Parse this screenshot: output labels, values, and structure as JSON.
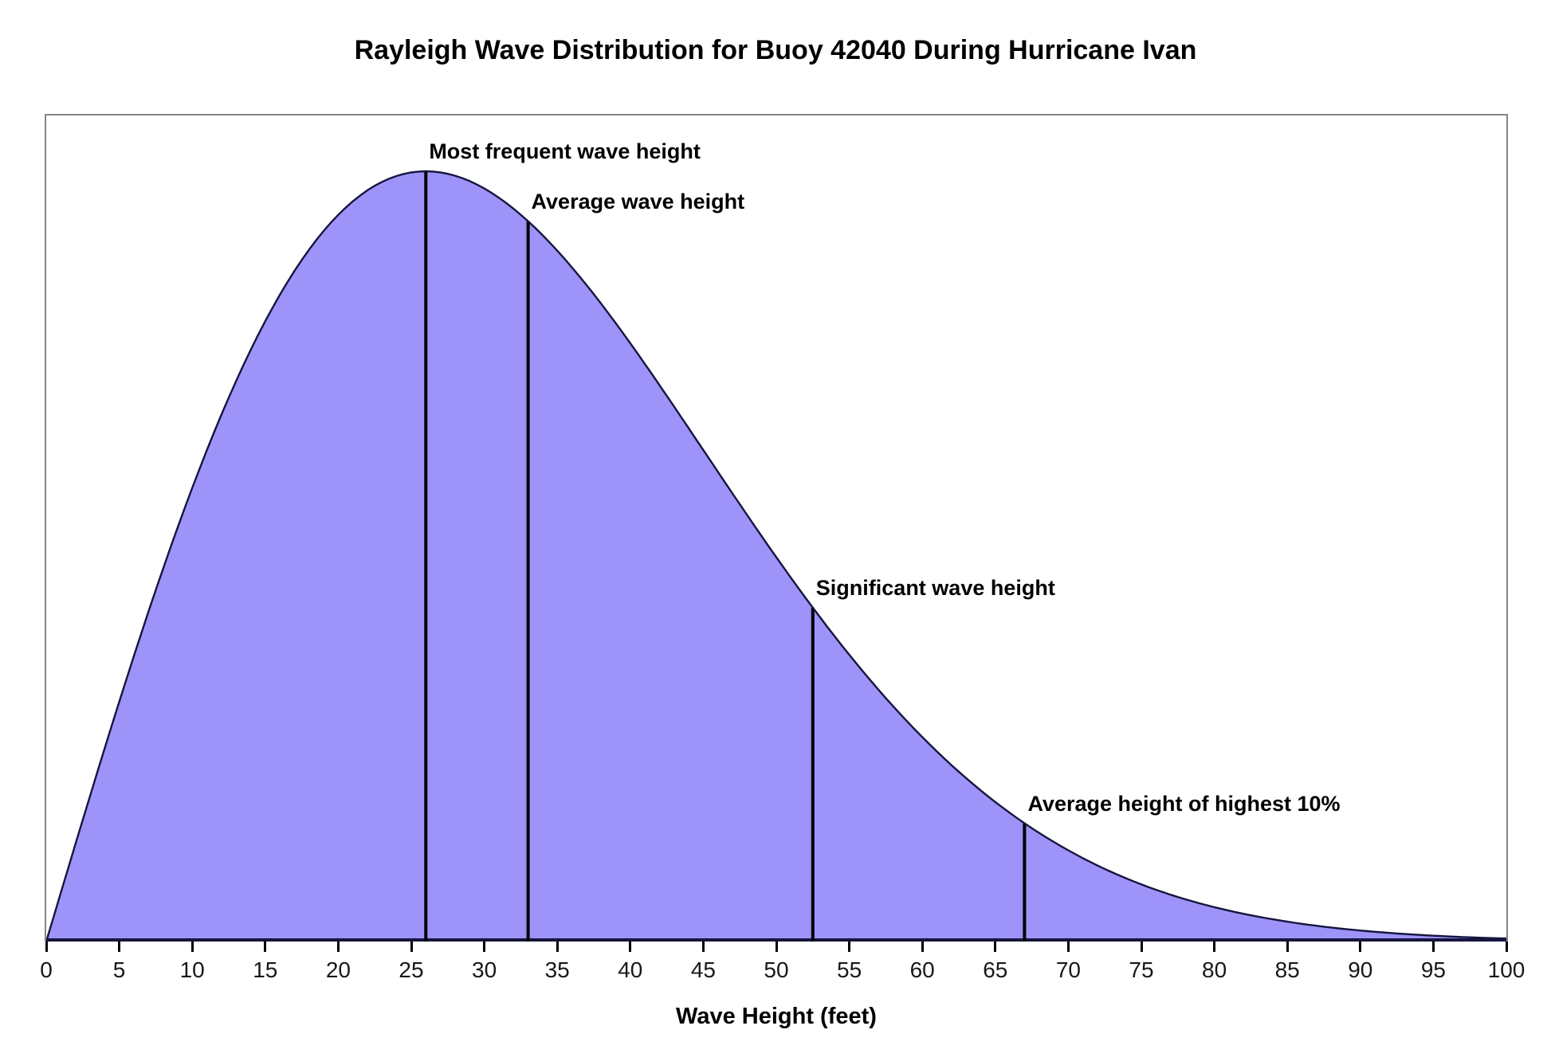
{
  "title": "Rayleigh Wave Distribution for Buoy 42040 During Hurricane Ivan",
  "chart_data": {
    "type": "area",
    "title": "Rayleigh Wave Distribution for Buoy 42040 During Hurricane Ivan",
    "distribution": "rayleigh",
    "rayleigh_sigma_feet": 26,
    "x_range": [
      0,
      100
    ],
    "x_tick_step": 5,
    "x_ticks": [
      0,
      5,
      10,
      15,
      20,
      25,
      30,
      35,
      40,
      45,
      50,
      55,
      60,
      65,
      70,
      75,
      80,
      85,
      90,
      95,
      100
    ],
    "xlabel": "Wave Height (feet)",
    "ylabel": "",
    "y_axis_shown": false,
    "grid": false,
    "legend": false,
    "fill_color": "#9e93f8",
    "outline_color": "#15153f",
    "marker_color": "#000000",
    "markers": [
      {
        "name": "most-frequent-wave-height",
        "label": "Most frequent wave height",
        "feet": 26
      },
      {
        "name": "average-wave-height",
        "label": "Average wave height",
        "feet": 33
      },
      {
        "name": "significant-wave-height",
        "label": "Significant wave height",
        "feet": 52.5
      },
      {
        "name": "average-height-of-highest-10pct",
        "label": "Average height of highest 10%",
        "feet": 67
      }
    ]
  }
}
